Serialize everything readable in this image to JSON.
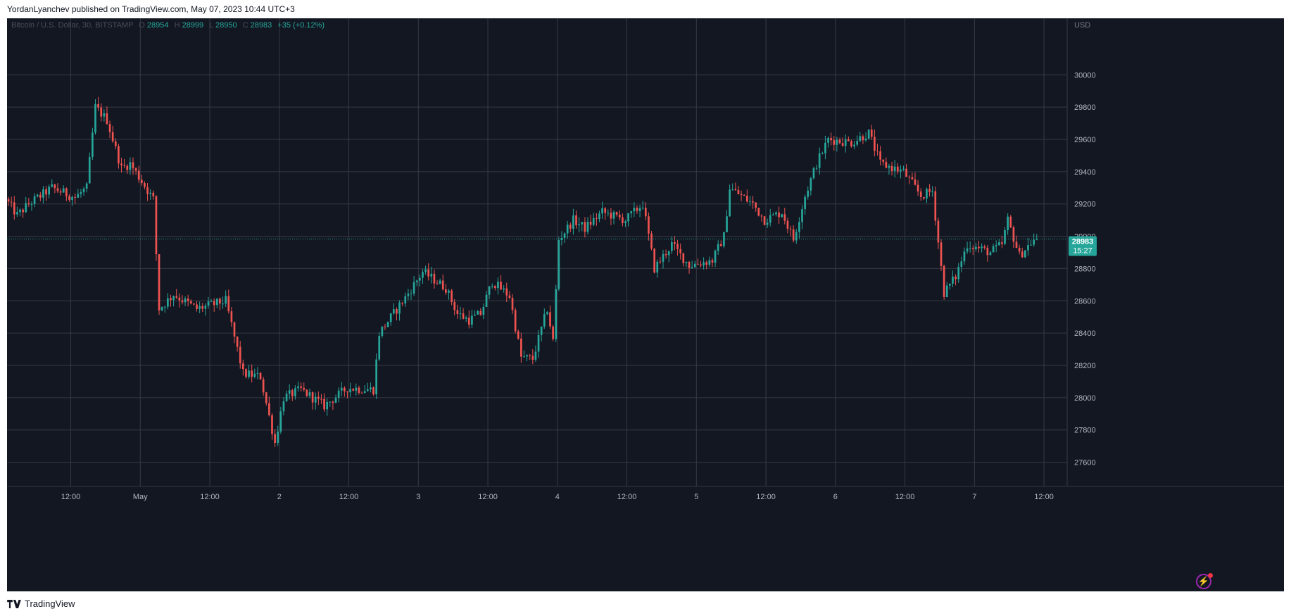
{
  "header": {
    "publish_text": "YordanLyanchev published on TradingView.com, May 07, 2023 10:44 UTC+3"
  },
  "footer": {
    "brand": "TradingView"
  },
  "legend": {
    "symbol": "Bitcoin / U.S. Dollar, 30, BITSTAMP",
    "o_label": "O",
    "o_value": "28954",
    "h_label": "H",
    "h_value": "28999",
    "l_label": "L",
    "l_value": "28950",
    "c_label": "C",
    "c_value": "28983",
    "change": "+35 (+0.12%)"
  },
  "price_tag": {
    "price": "28983",
    "countdown": "15:27"
  },
  "colors": {
    "background": "#131722",
    "grid": "#363a45",
    "up": "#26a69a",
    "down": "#ef5350",
    "axis_text": "#b2b5be",
    "last_price": "#26a69a"
  },
  "chart_data": {
    "type": "candlestick",
    "title": "Bitcoin / U.S. Dollar, 30, BITSTAMP",
    "y_axis_unit": "USD",
    "ylim": [
      27450,
      30350
    ],
    "y_ticks": [
      27600,
      27800,
      28000,
      28200,
      28400,
      28600,
      28800,
      29000,
      29200,
      29400,
      29600,
      29800,
      30000
    ],
    "x_ticks": [
      {
        "label": "12:00",
        "t": "2023-04-30 12:00"
      },
      {
        "label": "May",
        "t": "2023-05-01 00:00"
      },
      {
        "label": "12:00",
        "t": "2023-05-01 12:00"
      },
      {
        "label": "2",
        "t": "2023-05-02 00:00"
      },
      {
        "label": "12:00",
        "t": "2023-05-02 12:00"
      },
      {
        "label": "3",
        "t": "2023-05-03 00:00"
      },
      {
        "label": "12:00",
        "t": "2023-05-03 12:00"
      },
      {
        "label": "4",
        "t": "2023-05-04 00:00"
      },
      {
        "label": "12:00",
        "t": "2023-05-04 12:00"
      },
      {
        "label": "5",
        "t": "2023-05-05 00:00"
      },
      {
        "label": "12:00",
        "t": "2023-05-05 12:00"
      },
      {
        "label": "6",
        "t": "2023-05-06 00:00"
      },
      {
        "label": "12:00",
        "t": "2023-05-06 12:00"
      },
      {
        "label": "7",
        "t": "2023-05-07 00:00"
      },
      {
        "label": "12:00",
        "t": "2023-05-07 12:00"
      }
    ],
    "x_range": [
      "2023-04-30 01:00",
      "2023-05-07 16:00"
    ],
    "grid": true,
    "last_price": 28983,
    "interval_minutes": 30,
    "path_anchors": [
      {
        "t": "2023-04-30 01:00",
        "p": 29230
      },
      {
        "t": "2023-04-30 03:00",
        "p": 29130
      },
      {
        "t": "2023-04-30 05:00",
        "p": 29200
      },
      {
        "t": "2023-04-30 09:00",
        "p": 29300
      },
      {
        "t": "2023-04-30 13:00",
        "p": 29240
      },
      {
        "t": "2023-04-30 15:00",
        "p": 29300
      },
      {
        "t": "2023-04-30 16:30",
        "p": 29800
      },
      {
        "t": "2023-04-30 18:30",
        "p": 29720
      },
      {
        "t": "2023-04-30 21:00",
        "p": 29420
      },
      {
        "t": "2023-04-30 22:30",
        "p": 29450
      },
      {
        "t": "2023-05-01 02:30",
        "p": 29230
      },
      {
        "t": "2023-05-01 03:30",
        "p": 28550
      },
      {
        "t": "2023-05-01 06:00",
        "p": 28640
      },
      {
        "t": "2023-05-01 10:00",
        "p": 28550
      },
      {
        "t": "2023-05-01 15:00",
        "p": 28600
      },
      {
        "t": "2023-05-01 18:00",
        "p": 28150
      },
      {
        "t": "2023-05-01 21:00",
        "p": 28130
      },
      {
        "t": "2023-05-01 23:30",
        "p": 27720
      },
      {
        "t": "2023-05-02 01:00",
        "p": 28000
      },
      {
        "t": "2023-05-02 04:00",
        "p": 28050
      },
      {
        "t": "2023-05-02 08:00",
        "p": 27950
      },
      {
        "t": "2023-05-02 12:00",
        "p": 28060
      },
      {
        "t": "2023-05-02 16:30",
        "p": 28050
      },
      {
        "t": "2023-05-02 17:30",
        "p": 28400
      },
      {
        "t": "2023-05-02 22:00",
        "p": 28620
      },
      {
        "t": "2023-05-03 01:00",
        "p": 28780
      },
      {
        "t": "2023-05-03 05:00",
        "p": 28680
      },
      {
        "t": "2023-05-03 07:00",
        "p": 28520
      },
      {
        "t": "2023-05-03 09:00",
        "p": 28480
      },
      {
        "t": "2023-05-03 11:00",
        "p": 28520
      },
      {
        "t": "2023-05-03 13:00",
        "p": 28720
      },
      {
        "t": "2023-05-03 16:00",
        "p": 28630
      },
      {
        "t": "2023-05-03 18:00",
        "p": 28250
      },
      {
        "t": "2023-05-03 20:00",
        "p": 28240
      },
      {
        "t": "2023-05-03 22:30",
        "p": 28550
      },
      {
        "t": "2023-05-03 23:30",
        "p": 28350
      },
      {
        "t": "2023-05-04 00:30",
        "p": 28980
      },
      {
        "t": "2023-05-04 03:00",
        "p": 29100
      },
      {
        "t": "2023-05-04 05:00",
        "p": 29050
      },
      {
        "t": "2023-05-04 08:00",
        "p": 29150
      },
      {
        "t": "2023-05-04 12:00",
        "p": 29100
      },
      {
        "t": "2023-05-04 15:00",
        "p": 29200
      },
      {
        "t": "2023-05-04 17:00",
        "p": 28800
      },
      {
        "t": "2023-05-04 20:00",
        "p": 28950
      },
      {
        "t": "2023-05-04 23:00",
        "p": 28820
      },
      {
        "t": "2023-05-05 03:00",
        "p": 28850
      },
      {
        "t": "2023-05-05 05:00",
        "p": 29000
      },
      {
        "t": "2023-05-05 06:00",
        "p": 29300
      },
      {
        "t": "2023-05-05 10:00",
        "p": 29200
      },
      {
        "t": "2023-05-05 12:00",
        "p": 29100
      },
      {
        "t": "2023-05-05 15:00",
        "p": 29150
      },
      {
        "t": "2023-05-05 17:00",
        "p": 28980
      },
      {
        "t": "2023-05-05 19:00",
        "p": 29250
      },
      {
        "t": "2023-05-05 21:00",
        "p": 29450
      },
      {
        "t": "2023-05-05 23:00",
        "p": 29600
      },
      {
        "t": "2023-05-06 03:00",
        "p": 29580
      },
      {
        "t": "2023-05-06 06:00",
        "p": 29640
      },
      {
        "t": "2023-05-06 08:00",
        "p": 29450
      },
      {
        "t": "2023-05-06 12:00",
        "p": 29400
      },
      {
        "t": "2023-05-06 15:00",
        "p": 29250
      },
      {
        "t": "2023-05-06 17:00",
        "p": 29280
      },
      {
        "t": "2023-05-06 19:00",
        "p": 28650
      },
      {
        "t": "2023-05-06 21:00",
        "p": 28750
      },
      {
        "t": "2023-05-06 23:00",
        "p": 28950
      },
      {
        "t": "2023-05-07 03:00",
        "p": 28900
      },
      {
        "t": "2023-05-07 05:00",
        "p": 28950
      },
      {
        "t": "2023-05-07 06:00",
        "p": 29100
      },
      {
        "t": "2023-05-07 08:00",
        "p": 28880
      },
      {
        "t": "2023-05-07 10:00",
        "p": 28960
      },
      {
        "t": "2023-05-07 10:44",
        "p": 28983
      }
    ]
  }
}
